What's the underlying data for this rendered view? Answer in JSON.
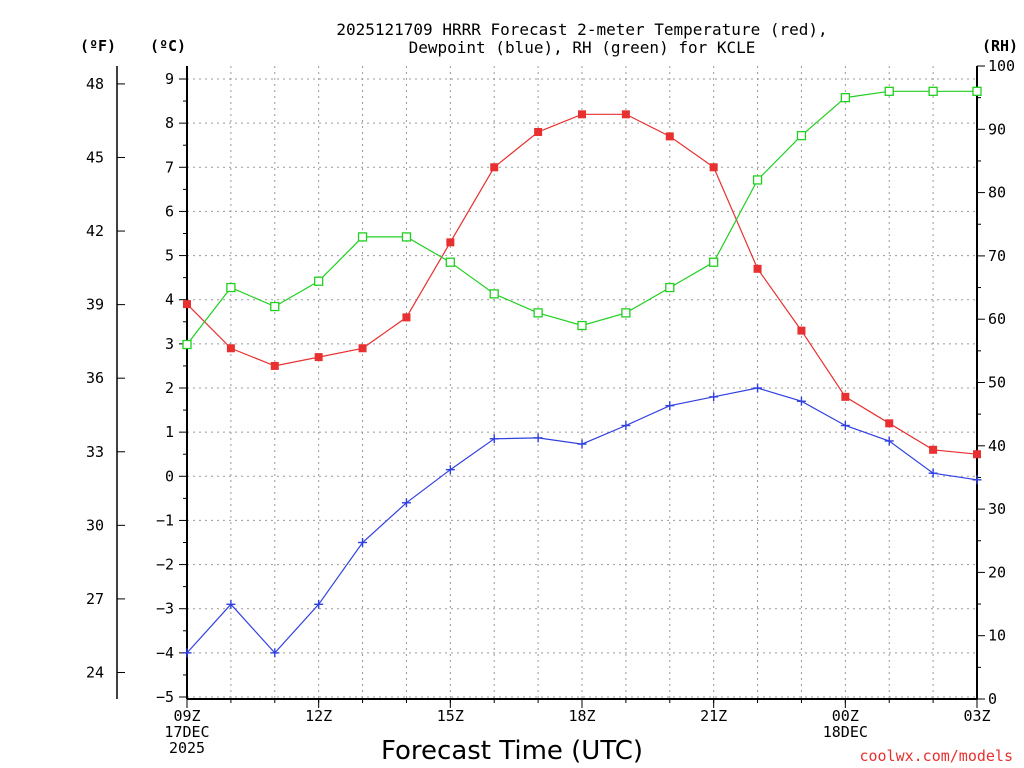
{
  "chart_data": {
    "type": "line",
    "title": [
      "2025121709 HRRR Forecast 2-meter Temperature (red),",
      "Dewpoint (blue), RH (green) for KCLE"
    ],
    "xlabel": "Forecast Time (UTC)",
    "credit": "coolwx.com/models",
    "units": {
      "fahrenheit": "(ºF)",
      "celsius": "(ºC)",
      "rh": "(RH)"
    },
    "x_hours": [
      0,
      1,
      2,
      3,
      4,
      5,
      6,
      7,
      8,
      9,
      10,
      11,
      12,
      13,
      14,
      15,
      16,
      17,
      18
    ],
    "x_ticks": [
      {
        "hour": 0,
        "lines": [
          "09Z",
          "17DEC",
          "2025"
        ]
      },
      {
        "hour": 3,
        "lines": [
          "12Z"
        ]
      },
      {
        "hour": 6,
        "lines": [
          "15Z"
        ]
      },
      {
        "hour": 9,
        "lines": [
          "18Z"
        ]
      },
      {
        "hour": 12,
        "lines": [
          "21Z"
        ]
      },
      {
        "hour": 15,
        "lines": [
          "00Z",
          "18DEC"
        ]
      },
      {
        "hour": 18,
        "lines": [
          "03Z"
        ]
      }
    ],
    "ylim_celsius": [
      -5,
      9.3
    ],
    "ylim_rh": [
      0,
      100
    ],
    "celsius_ticks": [
      -5,
      -4,
      -3,
      -2,
      -1,
      0,
      1,
      2,
      3,
      4,
      5,
      6,
      7,
      8,
      9
    ],
    "fahrenheit_ticks": [
      24,
      27,
      30,
      33,
      36,
      39,
      42,
      45,
      48
    ],
    "rh_ticks": [
      0,
      10,
      20,
      30,
      40,
      50,
      60,
      70,
      80,
      90,
      100
    ],
    "grid": true,
    "series": [
      {
        "name": "Temperature",
        "color": "#e83030",
        "axis": "celsius",
        "marker": "filled-square",
        "values": [
          3.9,
          2.9,
          2.5,
          2.7,
          2.9,
          3.6,
          5.3,
          7.0,
          7.8,
          8.2,
          8.2,
          7.7,
          7.0,
          4.7,
          3.3,
          1.8,
          1.2,
          0.6,
          0.5
        ]
      },
      {
        "name": "Dewpoint",
        "color": "#3040e0",
        "axis": "celsius",
        "marker": "plus",
        "values": [
          -4.0,
          -2.9,
          -4.0,
          -2.9,
          -1.5,
          -0.6,
          0.15,
          0.85,
          0.87,
          0.73,
          1.15,
          1.6,
          1.8,
          2.0,
          1.7,
          1.15,
          0.8,
          0.07,
          -0.08
        ]
      },
      {
        "name": "RH",
        "color": "#20d020",
        "axis": "rh",
        "marker": "open-square",
        "values": [
          56,
          65,
          62,
          66,
          73,
          73,
          69,
          64,
          61,
          59,
          61,
          65,
          69,
          82,
          89,
          95,
          96,
          96,
          96
        ]
      }
    ]
  }
}
